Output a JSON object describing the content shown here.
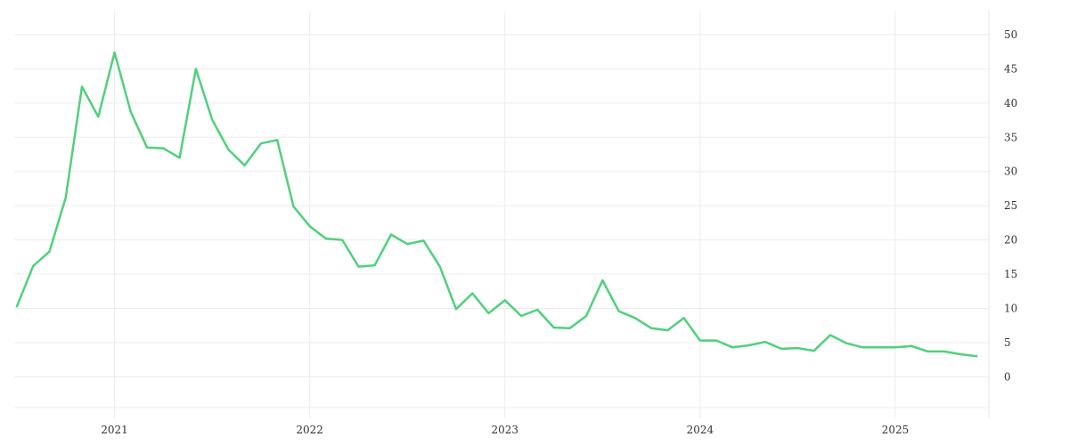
{
  "chart_data": {
    "type": "line",
    "title": "",
    "xlabel": "",
    "ylabel": "",
    "x_ticks": [
      "2021",
      "2022",
      "2023",
      "2024",
      "2025"
    ],
    "y_ticks": [
      "0",
      "5",
      "10",
      "15",
      "20",
      "25",
      "30",
      "35",
      "40",
      "45",
      "50"
    ],
    "ylim": [
      -4.5,
      53.5
    ],
    "xlim": [
      "2020-07",
      "2025-06"
    ],
    "y_axis_side": "right",
    "grid": true,
    "legend": "none",
    "series": [
      {
        "color": "#4fd17b",
        "points": [
          [
            "2020-07",
            10.3
          ],
          [
            "2020-08",
            16.2
          ],
          [
            "2020-09",
            18.3
          ],
          [
            "2020-10",
            26.2
          ],
          [
            "2020-11",
            42.4
          ],
          [
            "2020-12",
            38.0
          ],
          [
            "2021-01",
            47.4
          ],
          [
            "2021-02",
            38.7
          ],
          [
            "2021-03",
            33.5
          ],
          [
            "2021-04",
            33.4
          ],
          [
            "2021-05",
            32.0
          ],
          [
            "2021-06",
            45.0
          ],
          [
            "2021-07",
            37.6
          ],
          [
            "2021-08",
            33.2
          ],
          [
            "2021-09",
            30.9
          ],
          [
            "2021-10",
            34.1
          ],
          [
            "2021-11",
            34.6
          ],
          [
            "2021-12",
            24.9
          ],
          [
            "2022-01",
            22.0
          ],
          [
            "2022-02",
            20.2
          ],
          [
            "2022-03",
            20.0
          ],
          [
            "2022-04",
            16.1
          ],
          [
            "2022-05",
            16.3
          ],
          [
            "2022-06",
            20.8
          ],
          [
            "2022-07",
            19.4
          ],
          [
            "2022-08",
            19.9
          ],
          [
            "2022-09",
            16.1
          ],
          [
            "2022-10",
            9.9
          ],
          [
            "2022-11",
            12.2
          ],
          [
            "2022-12",
            9.3
          ],
          [
            "2023-01",
            11.2
          ],
          [
            "2023-02",
            8.9
          ],
          [
            "2023-03",
            9.8
          ],
          [
            "2023-04",
            7.2
          ],
          [
            "2023-05",
            7.1
          ],
          [
            "2023-06",
            8.9
          ],
          [
            "2023-07",
            14.1
          ],
          [
            "2023-08",
            9.6
          ],
          [
            "2023-09",
            8.6
          ],
          [
            "2023-10",
            7.1
          ],
          [
            "2023-11",
            6.8
          ],
          [
            "2023-12",
            8.6
          ],
          [
            "2024-01",
            5.3
          ],
          [
            "2024-02",
            5.3
          ],
          [
            "2024-03",
            4.3
          ],
          [
            "2024-04",
            4.6
          ],
          [
            "2024-05",
            5.1
          ],
          [
            "2024-06",
            4.1
          ],
          [
            "2024-07",
            4.2
          ],
          [
            "2024-08",
            3.8
          ],
          [
            "2024-09",
            6.1
          ],
          [
            "2024-10",
            4.9
          ],
          [
            "2024-11",
            4.3
          ],
          [
            "2024-12",
            4.3
          ],
          [
            "2025-01",
            4.3
          ],
          [
            "2025-02",
            4.5
          ],
          [
            "2025-03",
            3.7
          ],
          [
            "2025-04",
            3.7
          ],
          [
            "2025-05",
            3.3
          ],
          [
            "2025-06",
            3.0
          ]
        ]
      }
    ]
  }
}
